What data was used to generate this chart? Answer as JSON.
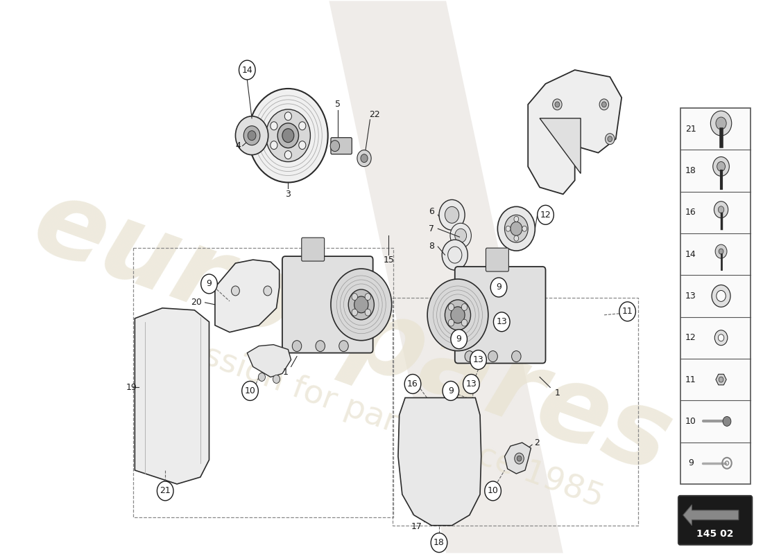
{
  "background_color": "#ffffff",
  "fig_width": 11.0,
  "fig_height": 8.0,
  "watermark_text1": "eurospares",
  "watermark_text2": "a passion for parts since 1985",
  "part_number_box": "145 02",
  "sidebar_items": [
    21,
    18,
    16,
    14,
    13,
    12,
    11,
    10,
    9
  ],
  "line_color": "#1a1a1a",
  "diagram_line_color": "#2a2a2a",
  "dashed_line_color": "#555555",
  "light_gray": "#e8e8e8",
  "mid_gray": "#c0c0c0",
  "dark_gray": "#888888"
}
